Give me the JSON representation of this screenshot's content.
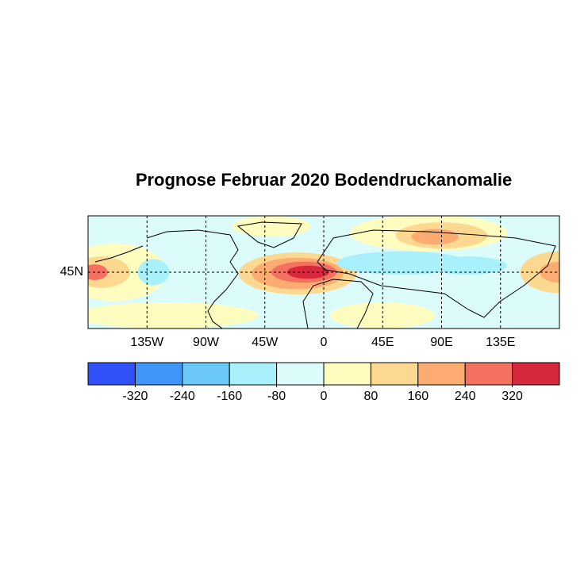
{
  "chart_data": {
    "type": "contour-map",
    "title": "Prognose Februar 2020 Bodendruckanomalie",
    "xlim": [
      -180,
      180
    ],
    "xticks": [
      {
        "value": -135,
        "label": "135W"
      },
      {
        "value": -90,
        "label": "90W"
      },
      {
        "value": -45,
        "label": "45W"
      },
      0,
      {
        "value": 45,
        "label": "45E"
      },
      {
        "value": 90,
        "label": "90E"
      },
      {
        "value": 135,
        "label": "135E"
      }
    ],
    "ylim": [
      2,
      88
    ],
    "yticks": [
      {
        "value": 45,
        "label": "45N"
      }
    ],
    "grid": true,
    "colorbar": {
      "levels": [
        -320,
        -240,
        -160,
        -80,
        0,
        80,
        160,
        240,
        320
      ],
      "colors": [
        "#3050f8",
        "#4096f8",
        "#6cc8f8",
        "#a8f0fc",
        "#dcfcfc",
        "#fffcc0",
        "#fcd890",
        "#fcac70",
        "#f47060",
        "#d8283c"
      ]
    }
  }
}
